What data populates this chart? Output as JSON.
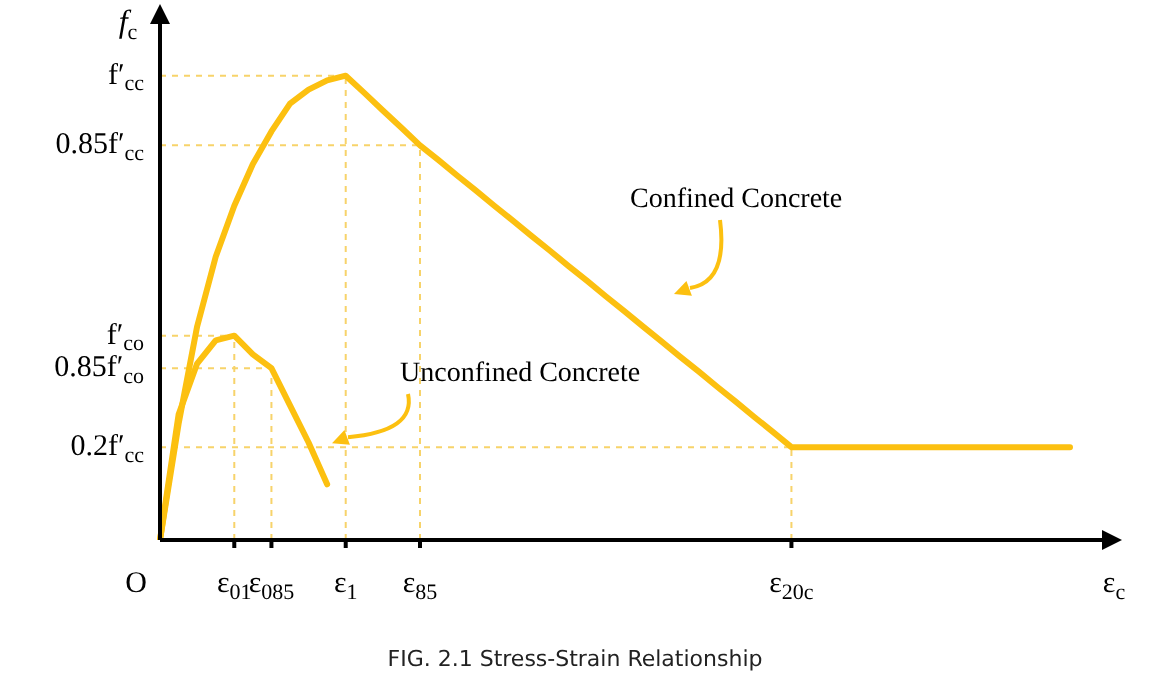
{
  "chart_data": {
    "type": "line",
    "xlabel": "ε$_{c}$",
    "ylabel": "f$_{c}$",
    "categories": [
      null,
      null,
      null,
      null,
      "ε$_{01}$",
      null,
      "ε$_{085}$",
      null,
      null,
      null,
      "ε$_{1}$",
      null,
      null,
      null,
      "ε$_{85}$",
      null,
      null,
      null,
      null,
      null,
      null,
      null,
      null,
      null,
      null,
      null,
      null,
      null,
      null,
      null,
      null,
      null,
      null,
      null,
      "ε$_{20c}$",
      null,
      null,
      null,
      null,
      null,
      null,
      null,
      null,
      null,
      null,
      null,
      null,
      null,
      null,
      null
    ],
    "ylim": [
      0,
      1.12
    ],
    "yticks": [
      {
        "value": 0.2,
        "label": "0.2f′$_{cc}$"
      },
      {
        "value": 0.85,
        "label": "0.85f′$_{cc}$"
      },
      {
        "value": 1,
        "label": "f′$_{cc}$"
      }
    ],
    "series": [
      {
        "color": "#fcc010",
        "values": [
          0,
          0.25,
          0.46,
          0.61,
          0.72,
          0.81,
          0.88,
          0.94,
          0.97,
          0.99,
          1,
          0.963,
          0.925,
          0.888,
          0.85,
          0.818,
          0.785,
          0.753,
          0.72,
          0.688,
          0.655,
          0.623,
          0.59,
          0.558,
          0.525,
          0.493,
          0.46,
          0.428,
          0.395,
          0.363,
          0.33,
          0.298,
          0.265,
          0.233,
          0.2,
          0.2,
          0.2,
          0.2,
          0.2,
          0.2,
          0.2,
          0.2,
          0.2,
          0.2,
          0.2,
          0.2,
          0.2,
          0.2,
          0.2,
          0.2
        ]
      },
      {
        "color": "#fcc010",
        "values": [
          0,
          0.27,
          0.38,
          0.43,
          0.44,
          0.4,
          0.37,
          0.29,
          0.21,
          0.12,
          null,
          null,
          null,
          null,
          null,
          null,
          null,
          null,
          null,
          null,
          null,
          null,
          null,
          null,
          null,
          null,
          null,
          null,
          null,
          null,
          null,
          null,
          null,
          null,
          null,
          null,
          null,
          null,
          null,
          null,
          null,
          null,
          null,
          null,
          null,
          null,
          null,
          null,
          null,
          null
        ]
      }
    ],
    "ref_lines": [
      {
        "axis": "y",
        "value": 1,
        "color": "#f7d36a",
        "line_style": "dashed"
      },
      {
        "axis": "y",
        "value": 0.85,
        "color": "#f7d36a",
        "line_style": "dashed"
      },
      {
        "axis": "y",
        "value": 0.2,
        "color": "#f7d36a",
        "line_style": "dashed"
      },
      {
        "axis": "y",
        "value": 0.44,
        "label": "f′$_{co}$",
        "color": "#f7d36a",
        "line_style": "dashed"
      },
      {
        "axis": "y",
        "value": 0.37,
        "label": "0.85f′$_{co}$",
        "color": "#f7d36a",
        "line_style": "dashed"
      },
      {
        "axis": "x",
        "value": "ε$_{01}$",
        "color": "#f7d36a",
        "line_style": "dashed"
      },
      {
        "axis": "x",
        "value": "ε$_{085}$",
        "color": "#f7d36a",
        "line_style": "dashed"
      },
      {
        "axis": "x",
        "value": "ε$_{1}$",
        "color": "#f7d36a",
        "line_style": "dashed"
      },
      {
        "axis": "x",
        "value": "ε$_{85}$",
        "color": "#f7d36a",
        "line_style": "dashed"
      },
      {
        "axis": "x",
        "value": "ε$_{20c}$",
        "color": "#f7d36a",
        "line_style": "dashed"
      }
    ],
    "annotations": [
      "Confined Concrete",
      {
        "text": "Unconfined Concrete",
        "y": 0.2
      },
      "O",
      "FIG. 2.1 Stress-Strain Relationship"
    ],
    "grid": false,
    "legend": false,
    "marker": "none",
    "line_style": "solid"
  }
}
